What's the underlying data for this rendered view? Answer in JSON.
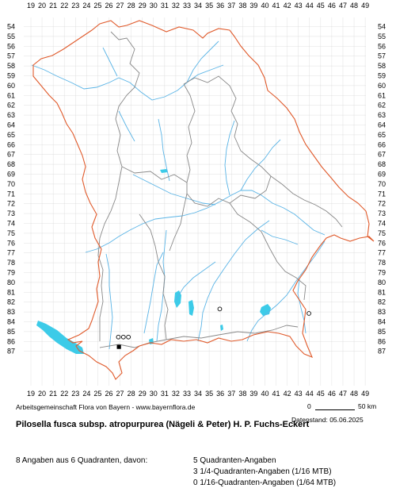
{
  "grid": {
    "x_labels": [
      "19",
      "20",
      "21",
      "22",
      "23",
      "24",
      "25",
      "26",
      "27",
      "28",
      "29",
      "30",
      "31",
      "32",
      "33",
      "34",
      "35",
      "36",
      "37",
      "38",
      "39",
      "40",
      "41",
      "42",
      "43",
      "44",
      "45",
      "46",
      "47",
      "48",
      "49"
    ],
    "y_labels": [
      "54",
      "55",
      "56",
      "57",
      "58",
      "59",
      "60",
      "61",
      "62",
      "63",
      "64",
      "65",
      "66",
      "67",
      "68",
      "69",
      "70",
      "71",
      "72",
      "73",
      "74",
      "75",
      "76",
      "77",
      "78",
      "79",
      "80",
      "81",
      "82",
      "83",
      "84",
      "85",
      "86",
      "87"
    ]
  },
  "colors": {
    "border": "#e05a2b",
    "district": "#888888",
    "river": "#5ab4e6",
    "lake": "#3ccbe8",
    "grid": "#d8d8d8"
  },
  "markers": [
    {
      "x": 26.85,
      "y": 85.55,
      "type": "open-circle"
    },
    {
      "x": 27.3,
      "y": 85.55,
      "type": "open-circle"
    },
    {
      "x": 27.75,
      "y": 85.55,
      "type": "open-circle"
    },
    {
      "x": 26.9,
      "y": 86.55,
      "type": "filled-square"
    },
    {
      "x": 35.95,
      "y": 82.7,
      "type": "open-circle"
    },
    {
      "x": 43.95,
      "y": 83.15,
      "type": "open-circle"
    }
  ],
  "scale": {
    "zero": "0",
    "end": "50 km"
  },
  "credit": "Arbeitsgemeinschaft Flora von Bayern - www.bayernflora.de",
  "date": "Datenstand: 05.06.2025",
  "title": "Pilosella fusca subsp. atropurpurea (Nägeli & Peter) H. P. Fuchs-Eckert",
  "summary": {
    "left": "8 Angaben aus 6 Quadranten, davon:",
    "lines": [
      "5 Quadranten-Angaben",
      "3 1/4-Quadranten-Angaben (1/16 MTB)",
      "0 1/16-Quadranten-Angaben (1/64 MTB)"
    ]
  }
}
